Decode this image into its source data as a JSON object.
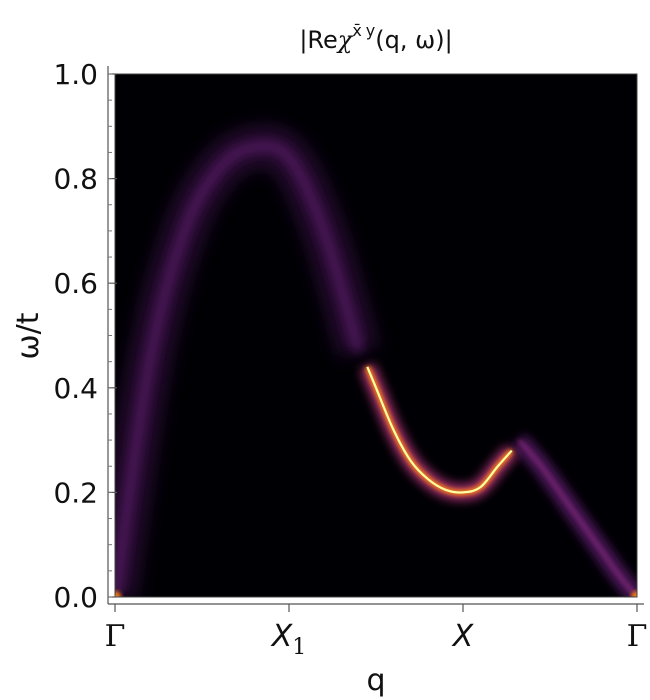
{
  "chart_data": {
    "type": "heatmap",
    "title_parts": {
      "open": "|Re",
      "chi": "χ",
      "sup_xbar": "x̄",
      "sup_y": "y",
      "args": "(q, ω)|"
    },
    "xlabel": "q",
    "ylabel": "ω/t",
    "ylim": [
      0.0,
      1.0
    ],
    "yticks": [
      "0.0",
      "0.2",
      "0.4",
      "0.6",
      "0.8",
      "1.0"
    ],
    "ytick_values": [
      0.0,
      0.2,
      0.4,
      0.6,
      0.8,
      1.0
    ],
    "xticks": [
      {
        "label": "Γ",
        "sub": "",
        "pos": 0.0
      },
      {
        "label": "X",
        "sub": "1",
        "pos": 1.0
      },
      {
        "label": "X",
        "sub": "",
        "pos": 2.0
      },
      {
        "label": "Γ",
        "sub": "",
        "pos": 3.0
      }
    ],
    "xlim": [
      0.0,
      3.0
    ],
    "colormap": "inferno",
    "background": "#000004",
    "bright_branch": {
      "q": [
        1.45,
        1.5,
        1.6,
        1.7,
        1.8,
        1.9,
        2.0,
        2.1,
        2.2,
        2.28
      ],
      "omega": [
        0.44,
        0.4,
        0.32,
        0.26,
        0.225,
        0.205,
        0.2,
        0.21,
        0.25,
        0.28
      ]
    },
    "dim_arch": {
      "q": [
        0.0,
        0.2,
        0.4,
        0.6,
        0.8,
        1.0,
        1.2,
        1.4
      ],
      "omega": [
        0.0,
        0.45,
        0.7,
        0.82,
        0.86,
        0.84,
        0.7,
        0.47
      ]
    },
    "dim_tail": {
      "q": [
        2.32,
        2.45,
        2.6,
        2.75,
        2.9,
        3.0
      ],
      "omega": [
        0.3,
        0.25,
        0.18,
        0.11,
        0.04,
        0.0
      ]
    }
  }
}
